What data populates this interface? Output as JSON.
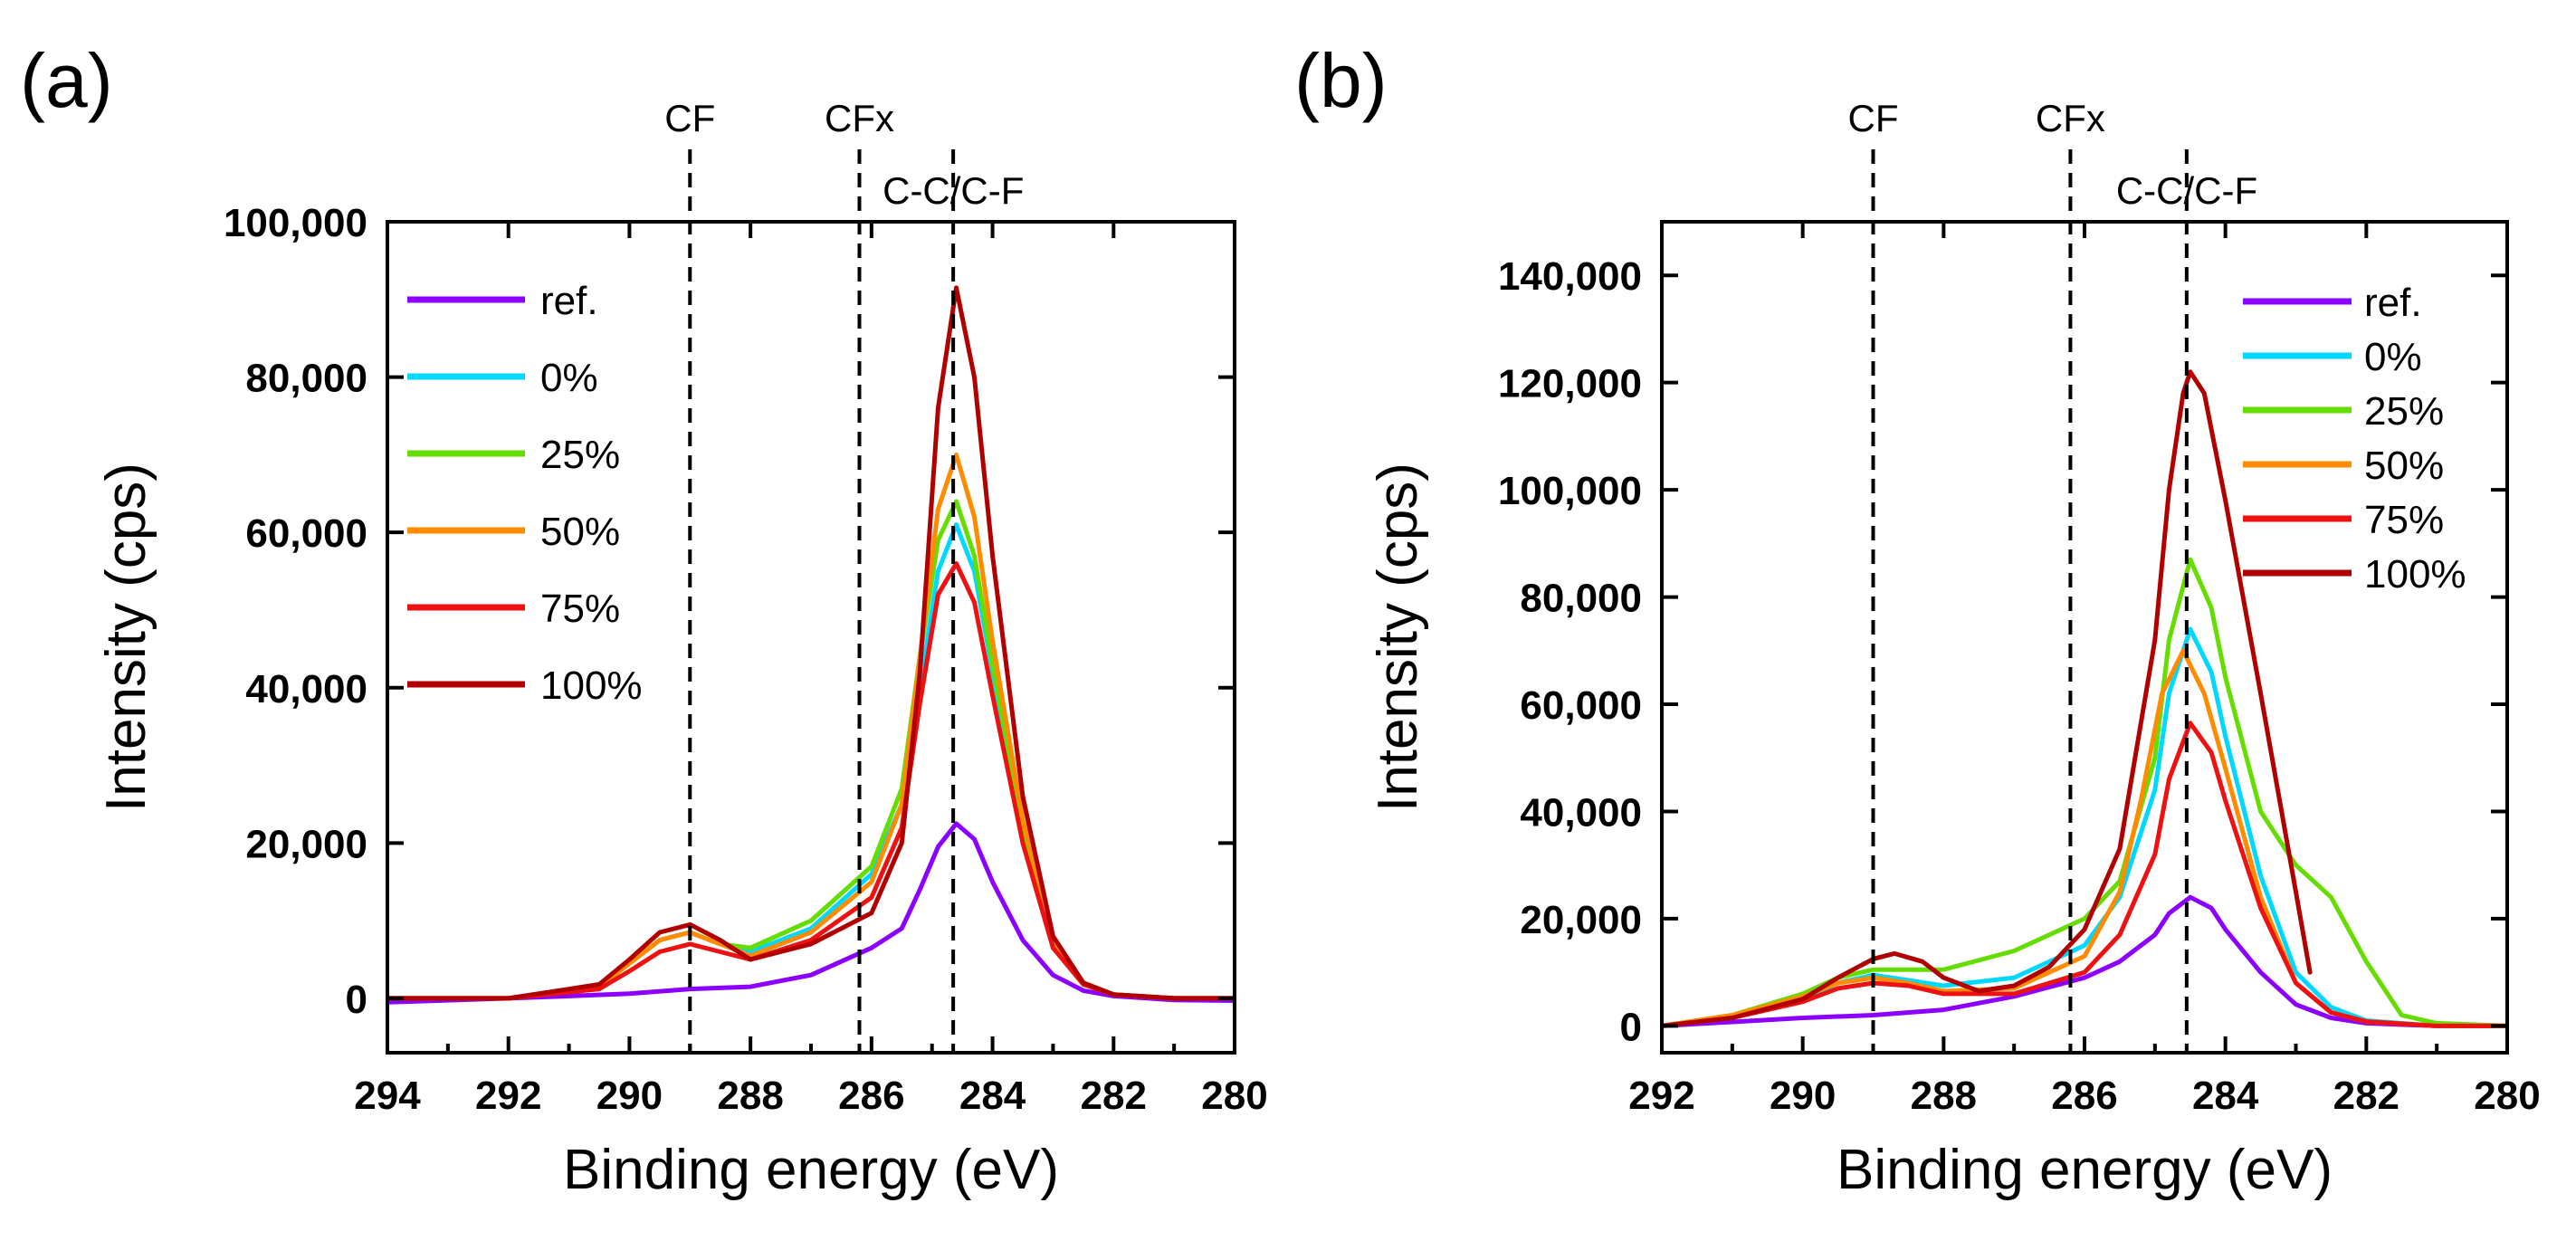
{
  "chart_data": [
    {
      "panel_label": "(a)",
      "type": "line",
      "xlabel": "Binding energy (eV)",
      "ylabel": "Intensity (cps)",
      "xlim": [
        294,
        280
      ],
      "x_reversed": true,
      "ylim": [
        -7000,
        100000
      ],
      "xticks": [
        294,
        292,
        290,
        288,
        286,
        284,
        282,
        280
      ],
      "xtick_labels": [
        "294",
        "292",
        "290",
        "288",
        "286",
        "284",
        "282",
        "280"
      ],
      "yticks": [
        0,
        20000,
        40000,
        60000,
        80000,
        100000
      ],
      "ytick_labels": [
        "0",
        "20,000",
        "40,000",
        "60,000",
        "80,000",
        "100,000"
      ],
      "reference_lines": [
        {
          "x": 289.0,
          "label": "CF"
        },
        {
          "x": 286.2,
          "label": "CFx"
        },
        {
          "x": 284.65,
          "label": "C-C/C-F"
        }
      ],
      "legend_position": "top-left",
      "series": [
        {
          "name": "ref.",
          "color": "#8B00FF",
          "x": [
            294,
            292,
            290,
            289,
            288,
            287,
            286,
            285.5,
            285.2,
            284.9,
            284.6,
            284.3,
            284,
            283.5,
            283,
            282.5,
            282,
            281,
            280
          ],
          "y": [
            -500,
            0,
            600,
            1200,
            1500,
            3000,
            6500,
            9000,
            14000,
            19500,
            22500,
            20500,
            15000,
            7500,
            3000,
            1000,
            300,
            -200,
            -300
          ]
        },
        {
          "name": "0%",
          "color": "#00D8FF",
          "x": [
            294,
            292,
            290.5,
            290,
            289.5,
            289,
            288.5,
            288,
            287,
            286,
            285.5,
            285.2,
            284.9,
            284.6,
            284.3,
            284,
            283.5,
            283,
            282.5,
            282,
            281,
            280
          ],
          "y": [
            0,
            0,
            1500,
            4500,
            7500,
            8500,
            7000,
            6000,
            9000,
            16000,
            25000,
            40000,
            55000,
            61000,
            55000,
            42000,
            22000,
            7000,
            2000,
            500,
            0,
            0
          ]
        },
        {
          "name": "25%",
          "color": "#66DD00",
          "x": [
            294,
            292,
            290.5,
            290,
            289.5,
            289,
            288.5,
            288,
            287,
            286,
            285.5,
            285.2,
            284.9,
            284.6,
            284.3,
            284,
            283.5,
            283,
            282.5,
            282,
            281,
            280
          ],
          "y": [
            0,
            0,
            1500,
            4500,
            7500,
            8500,
            7000,
            6500,
            10000,
            17000,
            27000,
            44000,
            59000,
            64000,
            57000,
            43000,
            22000,
            7500,
            2000,
            500,
            0,
            0
          ]
        },
        {
          "name": "50%",
          "color": "#FF8C00",
          "x": [
            294,
            292,
            290.5,
            290,
            289.5,
            289,
            288.5,
            288,
            287,
            286,
            285.5,
            285.2,
            284.9,
            284.6,
            284.3,
            284,
            283.5,
            283,
            282.5,
            282,
            281,
            280
          ],
          "y": [
            0,
            0,
            1500,
            4500,
            7500,
            8500,
            7000,
            5500,
            8500,
            15000,
            25000,
            44000,
            63000,
            70000,
            62000,
            46000,
            23000,
            7500,
            2000,
            500,
            0,
            0
          ]
        },
        {
          "name": "75%",
          "color": "#EE1111",
          "x": [
            294,
            292,
            290.5,
            290,
            289.5,
            289,
            288.5,
            288,
            287,
            286,
            285.5,
            285.2,
            284.9,
            284.6,
            284.3,
            284,
            283.5,
            283,
            282.5,
            282,
            281,
            280
          ],
          "y": [
            0,
            0,
            1200,
            3500,
            6000,
            7000,
            6000,
            5000,
            7500,
            13000,
            22000,
            38000,
            52000,
            56000,
            51000,
            39000,
            20000,
            6500,
            1800,
            500,
            0,
            0
          ]
        },
        {
          "name": "100%",
          "color": "#B00000",
          "x": [
            294,
            292,
            290.5,
            290,
            289.5,
            289,
            288.5,
            288,
            287,
            286,
            285.5,
            285.2,
            284.9,
            284.6,
            284.3,
            284,
            283.5,
            283,
            282.5,
            282,
            281,
            280
          ],
          "y": [
            0,
            0,
            1800,
            5000,
            8500,
            9500,
            7500,
            5000,
            7000,
            11000,
            20000,
            42000,
            76000,
            91500,
            80000,
            57000,
            26000,
            8000,
            2000,
            500,
            0,
            0
          ]
        }
      ]
    },
    {
      "panel_label": "(b)",
      "type": "line",
      "xlabel": "Binding energy (eV)",
      "ylabel": "Intensity (cps)",
      "xlim": [
        292,
        280
      ],
      "x_reversed": true,
      "ylim": [
        -5000,
        150000
      ],
      "xticks": [
        292,
        290,
        288,
        286,
        284,
        282,
        280
      ],
      "xtick_labels": [
        "292",
        "290",
        "288",
        "286",
        "284",
        "282",
        "280"
      ],
      "yticks": [
        0,
        20000,
        40000,
        60000,
        80000,
        100000,
        120000,
        140000
      ],
      "ytick_labels": [
        "0",
        "20,000",
        "40,000",
        "60,000",
        "80,000",
        "100,000",
        "120,000",
        "140,000"
      ],
      "reference_lines": [
        {
          "x": 289.0,
          "label": "CF"
        },
        {
          "x": 286.2,
          "label": "CFx"
        },
        {
          "x": 284.55,
          "label": "C-C/C-F"
        }
      ],
      "legend_position": "top-right",
      "series": [
        {
          "name": "ref.",
          "color": "#8B00FF",
          "x": [
            292,
            290,
            289,
            288,
            287,
            286,
            285.5,
            285,
            284.8,
            284.5,
            284.2,
            284,
            283.5,
            283,
            282.5,
            282,
            281,
            280
          ],
          "y": [
            0,
            1500,
            2000,
            3000,
            5500,
            9000,
            12000,
            17000,
            21000,
            24000,
            22000,
            18000,
            10000,
            4000,
            1500,
            500,
            0,
            0
          ]
        },
        {
          "name": "0%",
          "color": "#00D8FF",
          "x": [
            292,
            291,
            290,
            289.5,
            289,
            288.5,
            288,
            287,
            286,
            285.5,
            285,
            284.8,
            284.5,
            284.2,
            284,
            283.5,
            283,
            282.5,
            282,
            281,
            280
          ],
          "y": [
            0,
            1500,
            5000,
            8000,
            9500,
            8500,
            7500,
            9000,
            15000,
            24000,
            44000,
            62000,
            74000,
            66000,
            54000,
            28000,
            10000,
            3500,
            1000,
            0,
            0
          ]
        },
        {
          "name": "25%",
          "color": "#66DD00",
          "x": [
            292,
            291,
            290,
            289.5,
            289,
            288.5,
            288,
            287,
            286,
            285.5,
            285,
            284.8,
            284.5,
            284.2,
            284,
            283.5,
            283,
            282.5,
            282,
            281.5,
            281,
            280
          ],
          "y": [
            0,
            2000,
            6000,
            9000,
            10500,
            10500,
            10500,
            14000,
            20000,
            27000,
            50000,
            72000,
            87000,
            78000,
            65000,
            40000,
            30000,
            24000,
            12000,
            2000,
            500,
            0
          ]
        },
        {
          "name": "50%",
          "color": "#FF8C00",
          "x": [
            292,
            291,
            290,
            289.5,
            289,
            288.5,
            288,
            287,
            286,
            285.5,
            285.2,
            284.9,
            284.6,
            284.3,
            284,
            283.5,
            283,
            282.5,
            282,
            281,
            280
          ],
          "y": [
            0,
            2000,
            5500,
            8000,
            9000,
            8000,
            6500,
            7000,
            13000,
            25000,
            42000,
            62000,
            70000,
            62000,
            48000,
            24000,
            8000,
            2500,
            800,
            0,
            0
          ]
        },
        {
          "name": "75%",
          "color": "#EE1111",
          "x": [
            292,
            291,
            290,
            289.5,
            289,
            288.5,
            288,
            287,
            286,
            285.5,
            285,
            284.8,
            284.5,
            284.2,
            284,
            283.5,
            283,
            282.5,
            282,
            281,
            280
          ],
          "y": [
            0,
            1500,
            4500,
            7000,
            8000,
            7500,
            6000,
            6000,
            10000,
            17000,
            32000,
            46000,
            56500,
            51000,
            42000,
            22000,
            8000,
            2500,
            800,
            0,
            0
          ]
        },
        {
          "name": "100%",
          "color": "#B00000",
          "x": [
            292,
            291,
            290,
            289.5,
            289,
            288.7,
            288.3,
            288,
            287.5,
            287,
            286.5,
            286,
            285.5,
            285,
            284.8,
            284.6,
            284.5,
            284.3,
            284,
            283.5,
            283,
            282.8
          ],
          "y": [
            0,
            1500,
            5000,
            9000,
            12500,
            13500,
            12000,
            9000,
            6500,
            7500,
            11000,
            18000,
            33000,
            72000,
            100000,
            118000,
            122000,
            118000,
            98000,
            62000,
            25000,
            10000
          ]
        }
      ]
    }
  ]
}
